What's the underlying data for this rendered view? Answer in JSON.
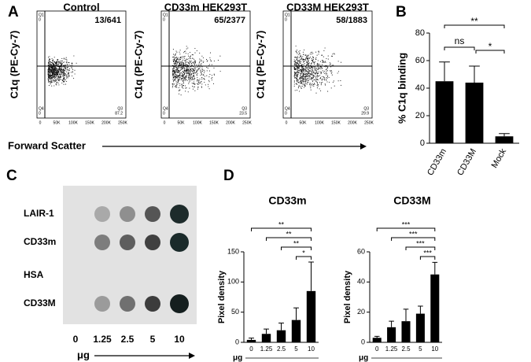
{
  "panels": {
    "a": {
      "label": "A",
      "titles": [
        "Control",
        "CD33m HEK293T",
        "CD33M HEK293T"
      ],
      "counts": [
        "13/641",
        "65/2377",
        "58/1883"
      ],
      "y_label": "C1q  (PE-Cy-7)",
      "x_label": "Forward Scatter",
      "x_ticks": [
        "0",
        "50K",
        "100K",
        "150K",
        "200K",
        "250K"
      ],
      "quadrant_names": [
        "Q1",
        "Q4",
        "Q3"
      ],
      "quadrant_values": [
        [
          "0",
          "0",
          "87.2"
        ],
        [
          "0",
          "0",
          "23.5"
        ],
        [
          "0",
          "0",
          "29.9"
        ]
      ]
    },
    "b": {
      "label": "B"
    },
    "c": {
      "label": "C",
      "rows": [
        "LAIR-1",
        "CD33m",
        "HSA",
        "CD33M"
      ],
      "columns": [
        "0",
        "1.25",
        "2.5",
        "5",
        "10"
      ],
      "x_label": "μg"
    },
    "d": {
      "label": "D"
    }
  },
  "chart_data": [
    {
      "type": "bar",
      "y_label": "% C1q binding",
      "categories": [
        "CD33m",
        "CD33M",
        "Mock"
      ],
      "values": [
        45,
        44,
        5
      ],
      "errors": [
        14,
        12,
        2
      ],
      "color": "#000000",
      "ylim": [
        0,
        80
      ],
      "yticks": [
        0,
        20,
        40,
        60,
        80
      ],
      "comparisons": [
        {
          "label": "**",
          "pair": [
            0,
            2
          ]
        },
        {
          "label": "ns",
          "pair": [
            0,
            1
          ]
        },
        {
          "label": "*",
          "pair": [
            1,
            2
          ]
        }
      ]
    },
    {
      "type": "bar",
      "title": "CD33m",
      "y_label": "Pixel density",
      "x_label": "μg",
      "categories": [
        "0",
        "1.25",
        "2.5",
        "5",
        "10"
      ],
      "values": [
        4,
        14,
        20,
        37,
        85
      ],
      "errors": [
        3,
        8,
        12,
        20,
        48
      ],
      "color": "#000000",
      "ylim": [
        0,
        150
      ],
      "yticks": [
        0,
        50,
        100,
        150
      ],
      "comparisons": [
        {
          "label": "**",
          "pair": [
            0,
            4
          ]
        },
        {
          "label": "**",
          "pair": [
            1,
            4
          ]
        },
        {
          "label": "**",
          "pair": [
            2,
            4
          ]
        },
        {
          "label": "*",
          "pair": [
            3,
            4
          ]
        }
      ]
    },
    {
      "type": "bar",
      "title": "CD33M",
      "y_label": "Pixel density",
      "x_label": "μg",
      "categories": [
        "0",
        "1.25",
        "2.5",
        "5",
        "10"
      ],
      "values": [
        3,
        10,
        14,
        19,
        45
      ],
      "errors": [
        1,
        4,
        8,
        5,
        8
      ],
      "color": "#000000",
      "ylim": [
        0,
        60
      ],
      "yticks": [
        0,
        20,
        40,
        60
      ],
      "comparisons": [
        {
          "label": "***",
          "pair": [
            0,
            4
          ]
        },
        {
          "label": "***",
          "pair": [
            1,
            4
          ]
        },
        {
          "label": "***",
          "pair": [
            2,
            4
          ]
        },
        {
          "label": "***",
          "pair": [
            3,
            4
          ]
        }
      ]
    }
  ]
}
